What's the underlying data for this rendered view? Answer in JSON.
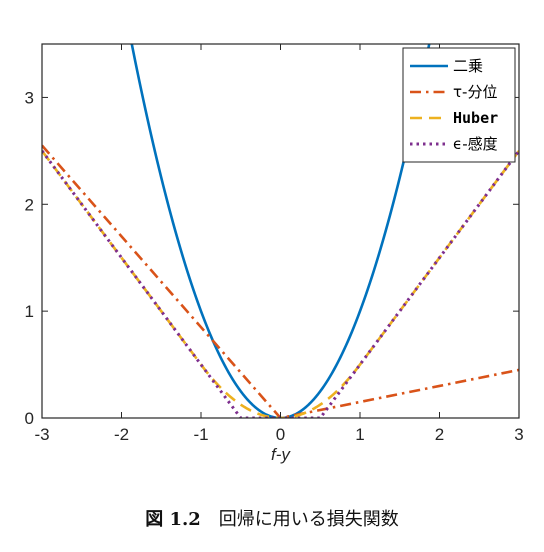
{
  "chart_data": {
    "type": "line",
    "title": "",
    "xlabel": "f-y",
    "ylabel": "",
    "xlim": [
      -3,
      3
    ],
    "ylim": [
      0,
      3.5
    ],
    "xticks": [
      -3,
      -2,
      -1,
      0,
      1,
      2,
      3
    ],
    "yticks": [
      0,
      1,
      2,
      3
    ],
    "grid": false,
    "legend_position": "top-right",
    "series": [
      {
        "name": "二乗",
        "function": "y = x^2",
        "style": "solid",
        "color": "#0072BD",
        "x": [
          -1.87,
          -1.5,
          -1,
          -0.5,
          0,
          0.5,
          1,
          1.5,
          1.87
        ],
        "y": [
          3.5,
          2.25,
          1,
          0.25,
          0,
          0.25,
          1,
          2.25,
          3.5
        ]
      },
      {
        "name": "τ-分位",
        "function": "y = 0.85|x| for x<0, 0.15x for x>=0",
        "style": "dash-dot",
        "color": "#D95319",
        "x": [
          -3,
          -2,
          -1,
          0,
          1,
          2,
          3
        ],
        "y": [
          2.55,
          1.7,
          0.85,
          0,
          0.15,
          0.3,
          0.45
        ]
      },
      {
        "name": "Huber",
        "function": "y = x^2/2 for |x|<=1, |x|-0.5 otherwise",
        "style": "dash",
        "color": "#EDB120",
        "x": [
          -3,
          -2,
          -1,
          -0.5,
          0,
          0.5,
          1,
          2,
          3
        ],
        "y": [
          2.5,
          1.5,
          0.5,
          0.125,
          0,
          0.125,
          0.5,
          1.5,
          2.5
        ]
      },
      {
        "name": "ϵ-感度",
        "function": "y = max(0, |x|-0.5)",
        "style": "dotted",
        "color": "#7E2F8E",
        "x": [
          -3,
          -2,
          -1,
          -0.5,
          0,
          0.5,
          1,
          2,
          3
        ],
        "y": [
          2.5,
          1.5,
          0.5,
          0,
          0,
          0,
          0.5,
          1.5,
          2.5
        ]
      }
    ]
  },
  "caption": {
    "figure_number": "図 1.2",
    "text": "回帰に用いる損失関数"
  }
}
